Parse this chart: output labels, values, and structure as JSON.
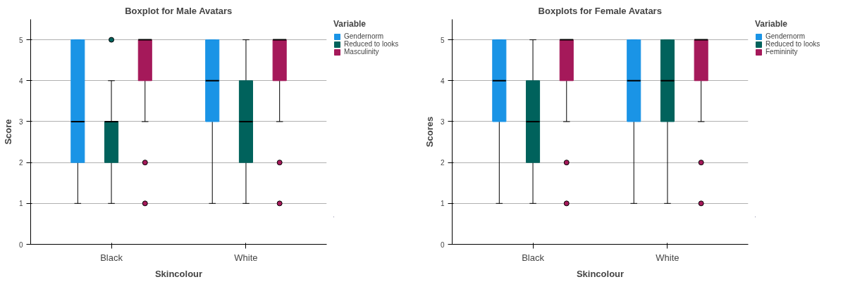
{
  "chart_data": [
    {
      "type": "box",
      "title": "Boxplot for Male Avatars",
      "xlabel": "Skincolour",
      "ylabel": "Score",
      "legend_title": "Variable",
      "legend": "right",
      "grid": "y",
      "categories": [
        "Black",
        "White"
      ],
      "ylim": [
        0,
        5.5
      ],
      "yticks": [
        0,
        1,
        2,
        3,
        4,
        5
      ],
      "series": [
        {
          "name": "Gendernorm",
          "color": "#1a94e6",
          "boxes": [
            {
              "low": 1,
              "q1": 2,
              "median": 3,
              "q3": 5,
              "high": 5
            },
            {
              "low": 1,
              "q1": 3,
              "median": 4,
              "q3": 5,
              "high": 5
            }
          ]
        },
        {
          "name": "Reduced to looks",
          "color": "#00625c",
          "boxes": [
            {
              "low": 1,
              "q1": 2,
              "median": 3,
              "q3": 3,
              "high": 4,
              "outliers": [
                5
              ]
            },
            {
              "low": 1,
              "q1": 2,
              "median": 3,
              "q3": 4,
              "high": 5
            }
          ]
        },
        {
          "name": "Masculinity",
          "color": "#a5195a",
          "boxes": [
            {
              "low": 3,
              "q1": 4,
              "median": 5,
              "q3": 5,
              "high": 5,
              "outliers": [
                2,
                1
              ]
            },
            {
              "low": 3,
              "q1": 4,
              "median": 5,
              "q3": 5,
              "high": 5,
              "outliers": [
                2,
                1
              ]
            }
          ]
        }
      ]
    },
    {
      "type": "box",
      "title": "Boxplots for Female Avatars",
      "xlabel": "Skincolour",
      "ylabel": "Scores",
      "legend_title": "Variable",
      "legend": "right",
      "grid": "y",
      "categories": [
        "Black",
        "White"
      ],
      "ylim": [
        0,
        5.5
      ],
      "yticks": [
        0,
        1,
        2,
        3,
        4,
        5
      ],
      "series": [
        {
          "name": "Gendernorm",
          "color": "#1a94e6",
          "boxes": [
            {
              "low": 1,
              "q1": 3,
              "median": 4,
              "q3": 5,
              "high": 5
            },
            {
              "low": 1,
              "q1": 3,
              "median": 4,
              "q3": 5,
              "high": 5
            }
          ]
        },
        {
          "name": "Reduced to looks",
          "color": "#00625c",
          "boxes": [
            {
              "low": 1,
              "q1": 2,
              "median": 3,
              "q3": 4,
              "high": 5
            },
            {
              "low": 1,
              "q1": 3,
              "median": 4,
              "q3": 5,
              "high": 5
            }
          ]
        },
        {
          "name": "Femininity",
          "color": "#a5195a",
          "boxes": [
            {
              "low": 3,
              "q1": 4,
              "median": 5,
              "q3": 5,
              "high": 5,
              "outliers": [
                2,
                1
              ]
            },
            {
              "low": 3,
              "q1": 4,
              "median": 5,
              "q3": 5,
              "high": 5,
              "outliers": [
                2,
                1
              ]
            }
          ]
        }
      ]
    }
  ]
}
